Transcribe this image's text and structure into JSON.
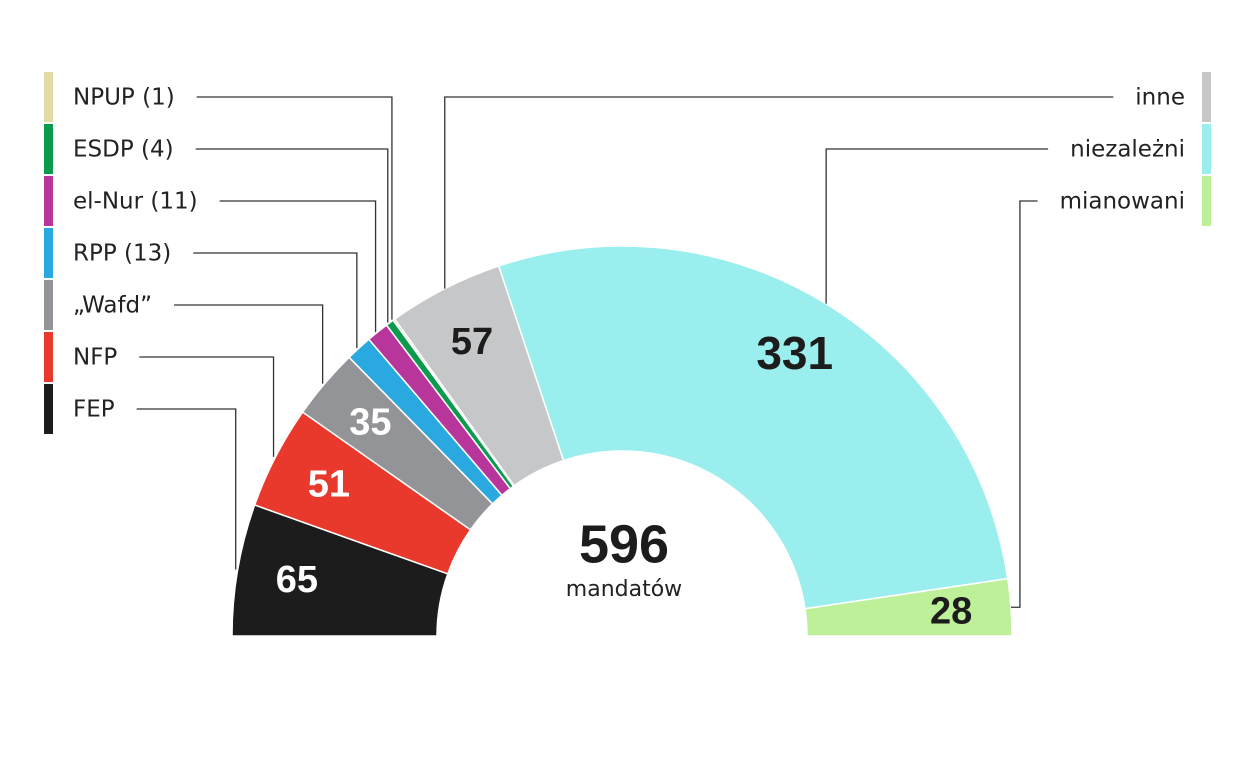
{
  "chart_data": {
    "type": "parliament",
    "total": 596,
    "total_label": "mandatów",
    "series": [
      {
        "name": "FEP",
        "color": "#1c1c1c",
        "values": [
          65
        ],
        "legend": "left"
      },
      {
        "name": "NFP",
        "color": "#e8392c",
        "values": [
          51
        ],
        "legend": "left"
      },
      {
        "name": "„Wafd”",
        "color": "#939497",
        "values": [
          35
        ],
        "legend": "left"
      },
      {
        "name": "RPP (13)",
        "color": "#2aa8e0",
        "values": [
          13
        ],
        "legend": "left"
      },
      {
        "name": "el-Nur (11)",
        "color": "#b8359b",
        "values": [
          11
        ],
        "legend": "left"
      },
      {
        "name": "ESDP (4)",
        "color": "#0c9a4c",
        "values": [
          4
        ],
        "legend": "left"
      },
      {
        "name": "NPUP (1)",
        "color": "#e2dca2",
        "values": [
          1
        ],
        "legend": "left"
      },
      {
        "name": "inne",
        "color": "#c6c7c9",
        "values": [
          57
        ],
        "legend": "right"
      },
      {
        "name": "niezależni",
        "color": "#9aeeee",
        "values": [
          331
        ],
        "legend": "right"
      },
      {
        "name": "mianowani",
        "color": "#bdf098",
        "values": [
          28
        ],
        "legend": "right"
      }
    ]
  }
}
